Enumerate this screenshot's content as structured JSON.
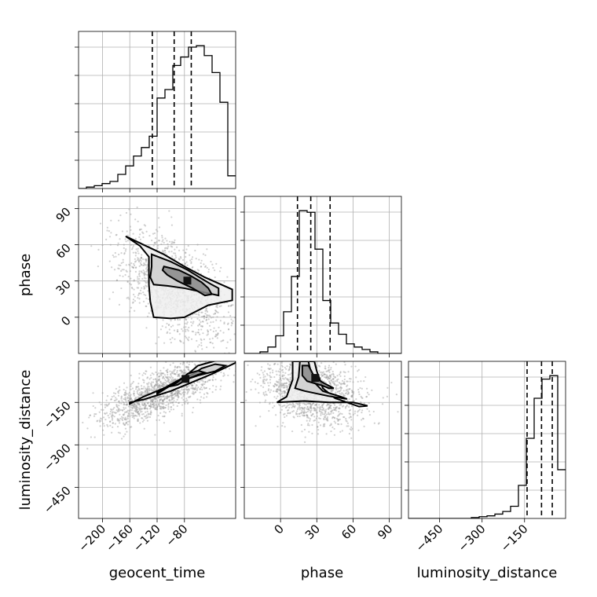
{
  "chart_data": {
    "type": "corner",
    "grid": true,
    "parameters": [
      "geocent_time",
      "phase",
      "luminosity_distance"
    ],
    "axes": {
      "geocent_time": {
        "range": [
          -235,
          -5
        ],
        "ticks": [
          -200,
          -160,
          -120,
          -80
        ],
        "tick_labels": [
          "−200",
          "−160",
          "−120",
          "−80"
        ]
      },
      "phase": {
        "range": [
          -30,
          100
        ],
        "ticks": [
          0,
          30,
          60,
          90
        ],
        "tick_labels": [
          "0",
          "30",
          "60",
          "90"
        ]
      },
      "luminosity_distance": {
        "range": [
          -560,
          -5
        ],
        "ticks": [
          -450,
          -300,
          -150
        ],
        "tick_labels": [
          "−450",
          "−300",
          "−150"
        ]
      }
    },
    "axis_labels": {
      "x": [
        "geocent_time",
        "phase",
        "luminosity_distance"
      ],
      "y": [
        "phase",
        "luminosity_distance"
      ]
    },
    "histograms": [
      {
        "parameter": "geocent_time",
        "edges": [
          -235,
          -223.5,
          -212,
          -200.5,
          -189,
          -177.5,
          -166,
          -154.5,
          -143,
          -131.5,
          -120,
          -108.5,
          -97,
          -85.5,
          -74,
          -62.5,
          -51,
          -39.5,
          -28,
          -16.5,
          -5
        ],
        "counts": [
          0,
          2,
          4,
          7,
          10,
          20,
          32,
          46,
          58,
          74,
          128,
          140,
          174,
          186,
          200,
          202,
          188,
          164,
          122,
          18
        ],
        "quantiles": [
          -127,
          -95,
          -70
        ]
      },
      {
        "parameter": "phase",
        "edges": [
          -30,
          -23.5,
          -17,
          -10.5,
          -4,
          2.5,
          9,
          15.5,
          22,
          28.5,
          35,
          41.5,
          48,
          54.5,
          61,
          67.5,
          74,
          80.5,
          87,
          93.5,
          100
        ],
        "counts": [
          0,
          0,
          2,
          8,
          22,
          52,
          96,
          178,
          176,
          130,
          66,
          38,
          24,
          12,
          8,
          5,
          2,
          0,
          0,
          0
        ],
        "quantiles": [
          14,
          25,
          41
        ]
      },
      {
        "parameter": "luminosity_distance",
        "edges": [
          -560,
          -532.25,
          -504.5,
          -476.75,
          -449,
          -421.25,
          -393.5,
          -365.75,
          -338,
          -310.25,
          -282.5,
          -254.75,
          -227,
          -199.25,
          -171.5,
          -143.75,
          -116,
          -88.25,
          -60.5,
          -32.75,
          -5
        ],
        "counts": [
          0,
          0,
          0,
          0,
          0,
          0,
          0,
          0,
          1,
          2,
          3,
          5,
          8,
          14,
          38,
          92,
          138,
          160,
          164,
          56
        ],
        "quantiles": [
          -141,
          -90,
          -52
        ]
      }
    ],
    "contours": [
      {
        "x": "geocent_time",
        "y": "phase",
        "levels": [
          [
            [
              -166,
              67
            ],
            [
              -140,
              60
            ],
            [
              -110,
              52
            ],
            [
              -80,
              42
            ],
            [
              -50,
              33
            ],
            [
              -10,
              23
            ],
            [
              -10,
              14
            ],
            [
              -45,
              10
            ],
            [
              -80,
              0
            ],
            [
              -100,
              -1
            ],
            [
              -125,
              0
            ],
            [
              -130,
              13
            ],
            [
              -132,
              27
            ],
            [
              -132,
              50
            ],
            [
              -145,
              59
            ]
          ],
          [
            [
              -128,
              52
            ],
            [
              -100,
              46
            ],
            [
              -75,
              39
            ],
            [
              -55,
              32
            ],
            [
              -40,
              27
            ],
            [
              -30,
              24
            ],
            [
              -30,
              18
            ],
            [
              -55,
              21
            ],
            [
              -80,
              24
            ],
            [
              -105,
              26
            ],
            [
              -125,
              27
            ],
            [
              -130,
              33
            ],
            [
              -128,
              42
            ]
          ],
          [
            [
              -110,
              42
            ],
            [
              -88,
              39
            ],
            [
              -70,
              34
            ],
            [
              -55,
              29
            ],
            [
              -45,
              24
            ],
            [
              -40,
              19
            ],
            [
              -50,
              18
            ],
            [
              -68,
              24
            ],
            [
              -90,
              30
            ],
            [
              -105,
              35
            ],
            [
              -112,
              39
            ]
          ]
        ],
        "points_sample_seed": 7
      },
      {
        "x": "geocent_time",
        "y": "luminosity_distance",
        "levels": [
          [
            [
              -160,
              -155
            ],
            [
              -140,
              -130
            ],
            [
              -110,
              -100
            ],
            [
              -80,
              -60
            ],
            [
              -60,
              -20
            ],
            [
              -30,
              0
            ],
            [
              -5,
              0
            ],
            [
              -5,
              -10
            ],
            [
              -40,
              -50
            ],
            [
              -70,
              -80
            ],
            [
              -100,
              -110
            ],
            [
              -140,
              -140
            ],
            [
              -160,
              -150
            ]
          ],
          [
            [
              -120,
              -120
            ],
            [
              -100,
              -90
            ],
            [
              -80,
              -70
            ],
            [
              -55,
              -30
            ],
            [
              -35,
              -15
            ],
            [
              -20,
              -20
            ],
            [
              -35,
              -40
            ],
            [
              -60,
              -55
            ],
            [
              -85,
              -75
            ],
            [
              -110,
              -100
            ],
            [
              -120,
              -115
            ]
          ],
          [
            [
              -104,
              -95
            ],
            [
              -90,
              -88
            ],
            [
              -72,
              -64
            ],
            [
              -60,
              -52
            ],
            [
              -50,
              -45
            ],
            [
              -60,
              -38
            ],
            [
              -75,
              -48
            ],
            [
              -92,
              -82
            ],
            [
              -103,
              -92
            ]
          ]
        ]
      },
      {
        "x": "phase",
        "y": "luminosity_distance",
        "levels": [
          [
            [
              10,
              -5
            ],
            [
              10,
              -70
            ],
            [
              5,
              -130
            ],
            [
              -3,
              -150
            ],
            [
              20,
              -145
            ],
            [
              40,
              -150
            ],
            [
              60,
              -150
            ],
            [
              72,
              -162
            ],
            [
              65,
              -165
            ],
            [
              45,
              -135
            ],
            [
              35,
              -100
            ],
            [
              30,
              -40
            ],
            [
              28,
              -5
            ]
          ],
          [
            [
              16,
              -5
            ],
            [
              15,
              -60
            ],
            [
              12,
              -100
            ],
            [
              20,
              -110
            ],
            [
              40,
              -128
            ],
            [
              55,
              -138
            ],
            [
              50,
              -130
            ],
            [
              35,
              -110
            ],
            [
              28,
              -80
            ],
            [
              25,
              -40
            ],
            [
              23,
              -5
            ]
          ],
          [
            [
              18,
              -20
            ],
            [
              18,
              -55
            ],
            [
              22,
              -75
            ],
            [
              34,
              -90
            ],
            [
              40,
              -100
            ],
            [
              44,
              -100
            ],
            [
              35,
              -80
            ],
            [
              28,
              -60
            ],
            [
              25,
              -35
            ],
            [
              23,
              -20
            ]
          ]
        ]
      }
    ]
  }
}
